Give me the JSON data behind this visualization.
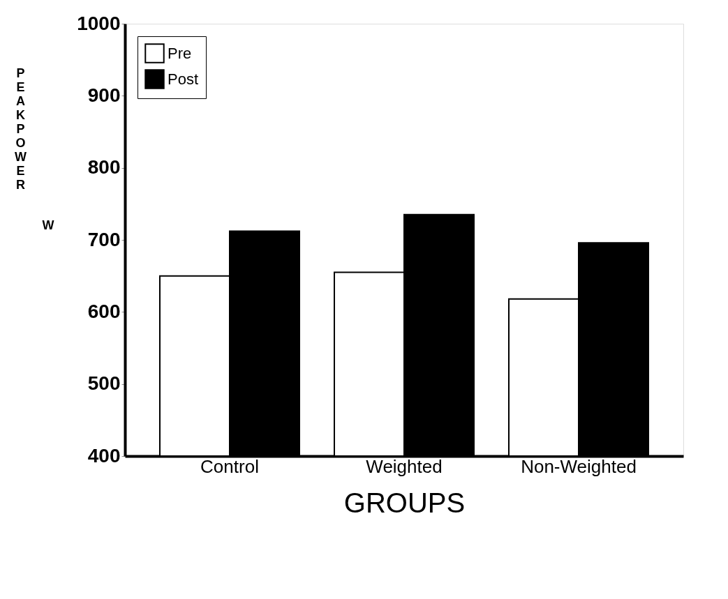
{
  "chart_data": {
    "type": "bar",
    "xlabel": "GROUPS",
    "ylabel": "PEAK POWER",
    "annotations": [
      "W"
    ],
    "categories": [
      "Control",
      "Weighted",
      "Non-Weighted"
    ],
    "series": [
      {
        "name": "Pre",
        "color": "#ffffff",
        "values": [
          650,
          655,
          618
        ]
      },
      {
        "name": "Post",
        "color": "#000000",
        "values": [
          712,
          735,
          696
        ]
      }
    ],
    "ylim": [
      400,
      1000
    ],
    "yticks": [
      400,
      500,
      600,
      700,
      800,
      900,
      1000
    ],
    "grid": false,
    "legend": "top left"
  }
}
